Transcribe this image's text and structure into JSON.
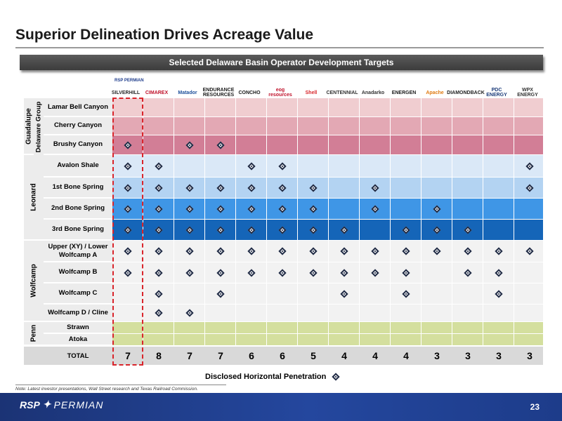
{
  "title": "Superior Delineation Drives Acreage Value",
  "banner": "Selected Delaware Basin Operator Development Targets",
  "logos": [
    {
      "name": "SILVERHILL",
      "color": "#2a2a2a"
    },
    {
      "name": "CIMAREX",
      "color": "#c0122b"
    },
    {
      "name": "Matador",
      "color": "#1d4f9a"
    },
    {
      "name": "ENDURANCE RESOURCES",
      "color": "#1a1a1a"
    },
    {
      "name": "CONCHO",
      "color": "#1a1a1a"
    },
    {
      "name": "eog resources",
      "color": "#c0122b"
    },
    {
      "name": "Shell",
      "color": "#d8262b"
    },
    {
      "name": "CENTENNIAL",
      "color": "#333333"
    },
    {
      "name": "Anadarko",
      "color": "#333333"
    },
    {
      "name": "ENERGEN",
      "color": "#1a1a1a"
    },
    {
      "name": "Apache",
      "color": "#e07b12"
    },
    {
      "name": "DIAMONDBACK",
      "color": "#222222"
    },
    {
      "name": "PDC ENERGY",
      "color": "#1c3c7a"
    },
    {
      "name": "WPX ENERGY",
      "color": "#333333"
    }
  ],
  "rsp_logo_small": "RSP PERMIAN",
  "groups": [
    {
      "label": "Guadalupe",
      "sub": "Delaware Group"
    },
    {
      "label": "Leonard"
    },
    {
      "label": "Wolfcamp"
    },
    {
      "label": "Penn"
    }
  ],
  "rows": [
    {
      "label": "Lamar Bell Canyon",
      "color": "#f0cdd0",
      "marks": [
        0,
        0,
        0,
        0,
        0,
        0,
        0,
        0,
        0,
        0,
        0,
        0,
        0,
        0
      ]
    },
    {
      "label": "Cherry Canyon",
      "color": "#e3a8b4",
      "marks": [
        0,
        0,
        0,
        0,
        0,
        0,
        0,
        0,
        0,
        0,
        0,
        0,
        0,
        0
      ]
    },
    {
      "label": "Brushy Canyon",
      "color": "#d27e96",
      "marks": [
        1,
        0,
        1,
        1,
        0,
        0,
        0,
        0,
        0,
        0,
        0,
        0,
        0,
        0
      ]
    },
    {
      "label": "Avalon Shale",
      "color": "#dae8f7",
      "marks": [
        1,
        1,
        0,
        0,
        1,
        1,
        0,
        0,
        0,
        0,
        0,
        0,
        0,
        1
      ]
    },
    {
      "label": "1st Bone Spring",
      "color": "#b3d3f2",
      "marks": [
        1,
        1,
        1,
        1,
        1,
        1,
        1,
        0,
        1,
        0,
        0,
        0,
        0,
        1
      ]
    },
    {
      "label": "2nd Bone Spring",
      "color": "#3f96e6",
      "marks": [
        1,
        1,
        1,
        1,
        1,
        1,
        1,
        0,
        1,
        0,
        1,
        0,
        0,
        0
      ]
    },
    {
      "label": "3rd Bone Spring",
      "color": "#1565b8",
      "marks": [
        1,
        1,
        1,
        1,
        1,
        1,
        1,
        1,
        0,
        1,
        1,
        1,
        0,
        0
      ]
    },
    {
      "label": "Upper (XY) / Lower Wolfcamp A",
      "color": "#f2f2f2",
      "marks": [
        1,
        1,
        1,
        1,
        1,
        1,
        1,
        1,
        1,
        1,
        1,
        1,
        1,
        1
      ]
    },
    {
      "label": "Wolfcamp B",
      "color": "#f2f2f2",
      "marks": [
        1,
        1,
        1,
        1,
        1,
        1,
        1,
        1,
        1,
        1,
        0,
        1,
        1,
        0
      ]
    },
    {
      "label": "Wolfcamp C",
      "color": "#f2f2f2",
      "marks": [
        0,
        1,
        0,
        1,
        0,
        0,
        0,
        1,
        0,
        1,
        0,
        0,
        1,
        0
      ]
    },
    {
      "label": "Wolfcamp D / Cline",
      "color": "#f2f2f2",
      "marks": [
        0,
        1,
        1,
        0,
        0,
        0,
        0,
        0,
        0,
        0,
        0,
        0,
        0,
        0
      ]
    },
    {
      "label": "Strawn",
      "color": "#d4df9e",
      "marks": [
        0,
        0,
        0,
        0,
        0,
        0,
        0,
        0,
        0,
        0,
        0,
        0,
        0,
        0
      ]
    },
    {
      "label": "Atoka",
      "color": "#d4df9e",
      "marks": [
        0,
        0,
        0,
        0,
        0,
        0,
        0,
        0,
        0,
        0,
        0,
        0,
        0,
        0
      ]
    }
  ],
  "total_label": "TOTAL",
  "totals": [
    "7",
    "8",
    "7",
    "7",
    "6",
    "6",
    "5",
    "4",
    "4",
    "4",
    "3",
    "3",
    "3",
    "3"
  ],
  "legend_label": "Disclosed Horizontal Penetration",
  "note": "Note:  Latest investor presentations, Wall Street research and Texas Railroad Commission.",
  "footer_logo_rsp": "RSP",
  "footer_logo_permian": "PERMIAN",
  "page_number": "23"
}
